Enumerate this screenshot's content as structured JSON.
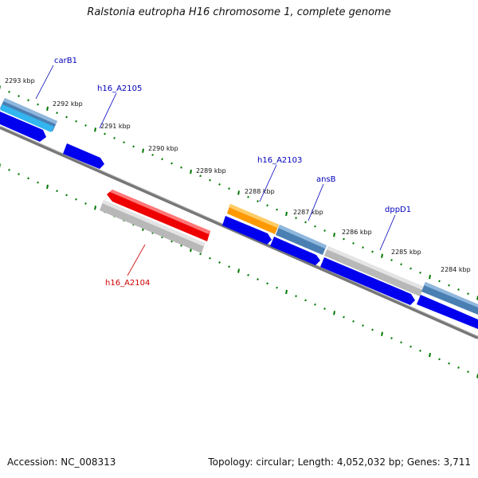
{
  "title": "Ralstonia eutropha H16 chromosome 1, complete genome",
  "footer": {
    "accession": "Accession: NC_008313",
    "meta": "Topology: circular; Length: 4,052,032 bp; Genes: 3,711"
  },
  "colors": {
    "backbone": "#777777",
    "tick": "#007700",
    "forward_label": "#0000bb",
    "reverse_label": "#cc0000",
    "cds": "#0000ee",
    "gene_blue": "#4a7fb3",
    "gene_cyan": "#33b5f0",
    "gene_orange": "#ff9900",
    "gene_red": "#ee0000",
    "gene_grey": "#b8b8b8"
  },
  "ticks": [
    "2293 kbp",
    "2292 kbp",
    "2291 kbp",
    "2290 kbp",
    "2289 kbp",
    "2288 kbp",
    "2287 kbp",
    "2286 kbp",
    "2285 kbp",
    "2284 kbp"
  ],
  "genes": [
    {
      "name": "carB1",
      "strand": "forward",
      "color": "gene_blue"
    },
    {
      "name": "h16_A2105",
      "strand": "forward",
      "color": "cds"
    },
    {
      "name": "h16_A2103",
      "strand": "forward",
      "color": "gene_orange"
    },
    {
      "name": "ansB",
      "strand": "forward",
      "color": "gene_blue"
    },
    {
      "name": "dppD1",
      "strand": "forward",
      "color": "gene_grey"
    },
    {
      "name": "h16_A2104",
      "strand": "reverse",
      "color": "gene_red"
    }
  ]
}
